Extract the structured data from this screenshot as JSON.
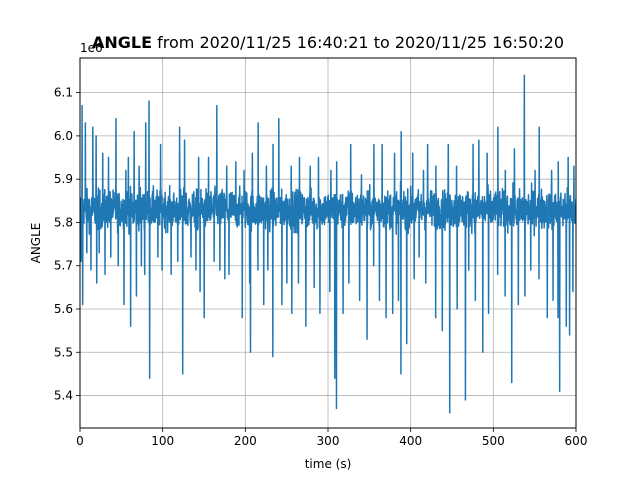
{
  "chart_data": {
    "type": "line",
    "title_bold": "ANGLE",
    "title_rest": " from 2020/11/25 16:40:21 to 2020/11/25 16:50:20",
    "xlabel": "time (s)",
    "ylabel": "ANGLE",
    "y_offset_label": "1e6",
    "xlim": [
      0,
      600
    ],
    "ylim": [
      5.325,
      6.18
    ],
    "x_ticks": [
      0,
      100,
      200,
      300,
      400,
      500,
      600
    ],
    "x_tick_labels": [
      "0",
      "100",
      "200",
      "300",
      "400",
      "500",
      "600"
    ],
    "y_ticks": [
      5.4,
      5.5,
      5.6,
      5.7,
      5.8,
      5.9,
      6.0,
      6.1
    ],
    "y_tick_labels": [
      "5.4",
      "5.5",
      "5.6",
      "5.7",
      "5.8",
      "5.9",
      "6.0",
      "6.1"
    ],
    "grid": true,
    "line_color": "#1f77b4",
    "series": [
      {
        "baseline": 5.825,
        "band": [
          5.77,
          5.89
        ],
        "spikes_up": [
          [
            2,
            6.07
          ],
          [
            6,
            6.03
          ],
          [
            15,
            6.02
          ],
          [
            19,
            6.0
          ],
          [
            27,
            5.96
          ],
          [
            34,
            5.95
          ],
          [
            43,
            6.04
          ],
          [
            55,
            5.92
          ],
          [
            58,
            5.95
          ],
          [
            65,
            6.01
          ],
          [
            71,
            5.93
          ],
          [
            79,
            6.03
          ],
          [
            83,
            6.08
          ],
          [
            97,
            5.98
          ],
          [
            120,
            6.02
          ],
          [
            126,
            5.99
          ],
          [
            143,
            5.95
          ],
          [
            155,
            5.95
          ],
          [
            165,
            6.07
          ],
          [
            177,
            5.93
          ],
          [
            188,
            5.94
          ],
          [
            198,
            5.92
          ],
          [
            208,
            5.96
          ],
          [
            215,
            6.03
          ],
          [
            225,
            5.93
          ],
          [
            233,
            5.98
          ],
          [
            240,
            6.04
          ],
          [
            255,
            5.93
          ],
          [
            265,
            5.95
          ],
          [
            278,
            5.93
          ],
          [
            288,
            5.95
          ],
          [
            303,
            5.92
          ],
          [
            310,
            5.94
          ],
          [
            327,
            5.98
          ],
          [
            340,
            5.91
          ],
          [
            355,
            5.98
          ],
          [
            365,
            5.98
          ],
          [
            380,
            5.96
          ],
          [
            388,
            6.01
          ],
          [
            402,
            5.96
          ],
          [
            415,
            5.92
          ],
          [
            420,
            5.98
          ],
          [
            430,
            5.93
          ],
          [
            445,
            5.98
          ],
          [
            455,
            5.93
          ],
          [
            475,
            5.98
          ],
          [
            482,
            5.99
          ],
          [
            492,
            5.96
          ],
          [
            505,
            6.02
          ],
          [
            514,
            5.92
          ],
          [
            525,
            5.97
          ],
          [
            537,
            6.14
          ],
          [
            550,
            5.92
          ],
          [
            555,
            6.02
          ],
          [
            570,
            5.92
          ],
          [
            578,
            5.94
          ],
          [
            590,
            5.95
          ],
          [
            597,
            5.93
          ]
        ],
        "spikes_down": [
          [
            1,
            5.71
          ],
          [
            3,
            5.61
          ],
          [
            8,
            5.73
          ],
          [
            13,
            5.69
          ],
          [
            20,
            5.66
          ],
          [
            23,
            5.73
          ],
          [
            30,
            5.68
          ],
          [
            37,
            5.72
          ],
          [
            46,
            5.7
          ],
          [
            53,
            5.61
          ],
          [
            61,
            5.56
          ],
          [
            68,
            5.63
          ],
          [
            74,
            5.7
          ],
          [
            78,
            5.68
          ],
          [
            84,
            5.44
          ],
          [
            94,
            5.72
          ],
          [
            99,
            5.69
          ],
          [
            110,
            5.68
          ],
          [
            118,
            5.71
          ],
          [
            124,
            5.45
          ],
          [
            134,
            5.72
          ],
          [
            140,
            5.69
          ],
          [
            145,
            5.64
          ],
          [
            150,
            5.58
          ],
          [
            162,
            5.71
          ],
          [
            169,
            5.69
          ],
          [
            175,
            5.67
          ],
          [
            180,
            5.68
          ],
          [
            196,
            5.58
          ],
          [
            205,
            5.66
          ],
          [
            206,
            5.5
          ],
          [
            215,
            5.69
          ],
          [
            222,
            5.61
          ],
          [
            227,
            5.69
          ],
          [
            233,
            5.49
          ],
          [
            244,
            5.61
          ],
          [
            250,
            5.66
          ],
          [
            256,
            5.59
          ],
          [
            264,
            5.66
          ],
          [
            273,
            5.56
          ],
          [
            283,
            5.65
          ],
          [
            290,
            5.59
          ],
          [
            302,
            5.64
          ],
          [
            308,
            5.44
          ],
          [
            310,
            5.37
          ],
          [
            318,
            5.59
          ],
          [
            325,
            5.66
          ],
          [
            338,
            5.62
          ],
          [
            347,
            5.53
          ],
          [
            355,
            5.7
          ],
          [
            362,
            5.62
          ],
          [
            370,
            5.58
          ],
          [
            378,
            5.59
          ],
          [
            385,
            5.62
          ],
          [
            388,
            5.45
          ],
          [
            395,
            5.52
          ],
          [
            404,
            5.67
          ],
          [
            410,
            5.72
          ],
          [
            418,
            5.66
          ],
          [
            430,
            5.58
          ],
          [
            438,
            5.55
          ],
          [
            447,
            5.36
          ],
          [
            456,
            5.6
          ],
          [
            466,
            5.39
          ],
          [
            470,
            5.69
          ],
          [
            478,
            5.62
          ],
          [
            487,
            5.5
          ],
          [
            494,
            5.59
          ],
          [
            505,
            5.68
          ],
          [
            514,
            5.63
          ],
          [
            522,
            5.43
          ],
          [
            530,
            5.61
          ],
          [
            538,
            5.63
          ],
          [
            545,
            5.69
          ],
          [
            555,
            5.67
          ],
          [
            565,
            5.58
          ],
          [
            572,
            5.62
          ],
          [
            578,
            5.58
          ],
          [
            580,
            5.41
          ],
          [
            588,
            5.56
          ],
          [
            592,
            5.54
          ],
          [
            596,
            5.64
          ],
          [
            600,
            5.46
          ]
        ]
      }
    ]
  }
}
